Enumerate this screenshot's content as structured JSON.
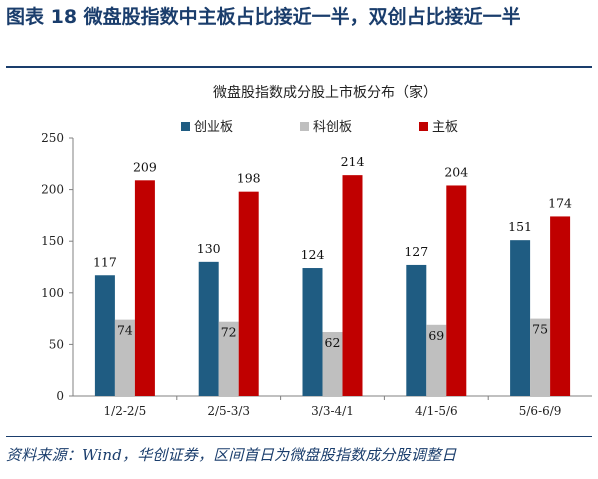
{
  "figure": {
    "title": "图表 18 微盘股指数中主板占比接近一半，双创占比接近一半",
    "source": "资料来源：Wind，华创证券，区间首日为微盘股指数成分股调整日"
  },
  "chart_data": {
    "type": "bar",
    "title": "微盘股指数成分股上市板分布（家）",
    "xlabel": "",
    "ylabel": "",
    "categories": [
      "1/2-2/5",
      "2/5-3/3",
      "3/3-4/1",
      "4/1-5/6",
      "5/6-6/9"
    ],
    "series": [
      {
        "name": "创业板",
        "color": "#1f5c82",
        "values": [
          117,
          130,
          124,
          127,
          151
        ]
      },
      {
        "name": "科创板",
        "color": "#bfbfbf",
        "values": [
          74,
          72,
          62,
          69,
          75
        ]
      },
      {
        "name": "主板",
        "color": "#c00000",
        "values": [
          209,
          198,
          214,
          204,
          174
        ]
      }
    ],
    "ylim": [
      0,
      250
    ],
    "yticks": [
      0,
      50,
      100,
      150,
      200,
      250
    ],
    "grid": false,
    "legend": "top-center",
    "data_labels": true
  }
}
